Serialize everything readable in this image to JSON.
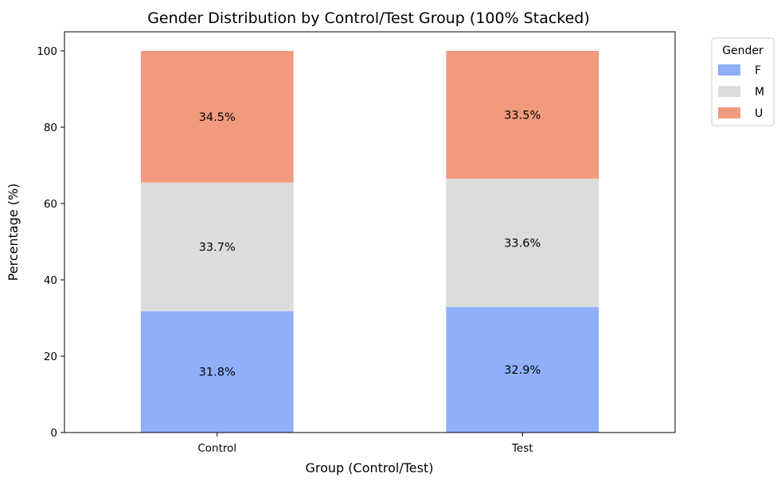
{
  "chart_data": {
    "type": "bar",
    "stacked": true,
    "title": "Gender Distribution by Control/Test Group (100% Stacked)",
    "xlabel": "Group (Control/Test)",
    "ylabel": "Percentage (%)",
    "categories": [
      "Control",
      "Test"
    ],
    "ylim": [
      0,
      105
    ],
    "yticks": [
      0,
      20,
      40,
      60,
      80,
      100
    ],
    "grid": false,
    "legend": {
      "title": "Gender",
      "placement": "outside-top-right"
    },
    "series": [
      {
        "name": "F",
        "color": "#8fb0f9",
        "values": [
          31.8,
          32.9
        ],
        "labels": [
          "31.8%",
          "32.9%"
        ]
      },
      {
        "name": "M",
        "color": "#dcdcdc",
        "values": [
          33.7,
          33.6
        ],
        "labels": [
          "33.7%",
          "33.6%"
        ]
      },
      {
        "name": "U",
        "color": "#f19a7d",
        "values": [
          34.5,
          33.5
        ],
        "labels": [
          "34.5%",
          "33.5%"
        ]
      }
    ]
  }
}
